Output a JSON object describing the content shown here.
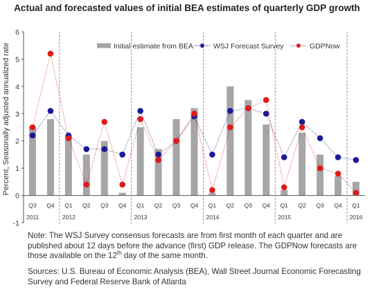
{
  "chart_data": {
    "type": "bar+line",
    "title": "Actual and forecasted values of initial BEA estimates of quarterly GDP growth",
    "ylabel": "Percent, Seasonally adjusted annualized rate",
    "xlabel": "",
    "ylim": [
      -1,
      6
    ],
    "yticks": [
      "-1",
      "0",
      "1",
      "2",
      "3",
      "4",
      "5",
      "6"
    ],
    "grid": false,
    "legend_position": "top",
    "categories": [
      "Q3",
      "Q4",
      "Q1",
      "Q2",
      "Q3",
      "Q4",
      "Q1",
      "Q2",
      "Q3",
      "Q4",
      "Q1",
      "Q2",
      "Q3",
      "Q4",
      "Q1",
      "Q2",
      "Q3",
      "Q4",
      "Q1"
    ],
    "years": [
      {
        "label": "2011",
        "start": 0,
        "count": 2
      },
      {
        "label": "2012",
        "start": 2,
        "count": 4
      },
      {
        "label": "2013",
        "start": 6,
        "count": 4
      },
      {
        "label": "2014",
        "start": 10,
        "count": 4
      },
      {
        "label": "2015",
        "start": 14,
        "count": 4
      },
      {
        "label": "2016",
        "start": 18,
        "count": 1
      }
    ],
    "series": [
      {
        "name": "Initial estimate from BEA",
        "kind": "bar",
        "color": "#a6a6a6",
        "values": [
          2.5,
          2.8,
          2.2,
          1.5,
          2.0,
          0.1,
          2.5,
          1.7,
          2.8,
          3.2,
          0.1,
          4.0,
          3.5,
          2.6,
          0.2,
          2.3,
          1.5,
          0.7,
          0.5
        ]
      },
      {
        "name": "WSJ Forecast Survey",
        "kind": "line",
        "color": "#1a1a99",
        "values": [
          2.2,
          3.1,
          2.2,
          1.7,
          1.7,
          1.5,
          3.1,
          1.5,
          2.0,
          2.9,
          1.5,
          3.1,
          3.2,
          3.0,
          1.4,
          2.7,
          2.1,
          1.4,
          1.3
        ]
      },
      {
        "name": "GDPNow",
        "kind": "line",
        "color": "#e01b1b",
        "values": [
          2.5,
          5.2,
          2.1,
          0.4,
          2.7,
          0.4,
          2.8,
          1.3,
          2.0,
          3.0,
          0.2,
          2.5,
          3.2,
          3.5,
          0.3,
          2.5,
          1.0,
          0.8,
          0.1
        ]
      }
    ]
  },
  "note": {
    "part1": "Note: The WSJ Survey consensus forecasts are from first month of each quarter and are published about 12 days before the advance (first) GDP release.  The GDPNow forecasts are those available on the 12",
    "superscript": "th",
    "part2": " day of the same month."
  },
  "sources": "Sources: U.S. Bureau of Economic Analysis (BEA), Wall Street Journal Economic Forecasting Survey and Federal Reserve Bank of Atlanta"
}
